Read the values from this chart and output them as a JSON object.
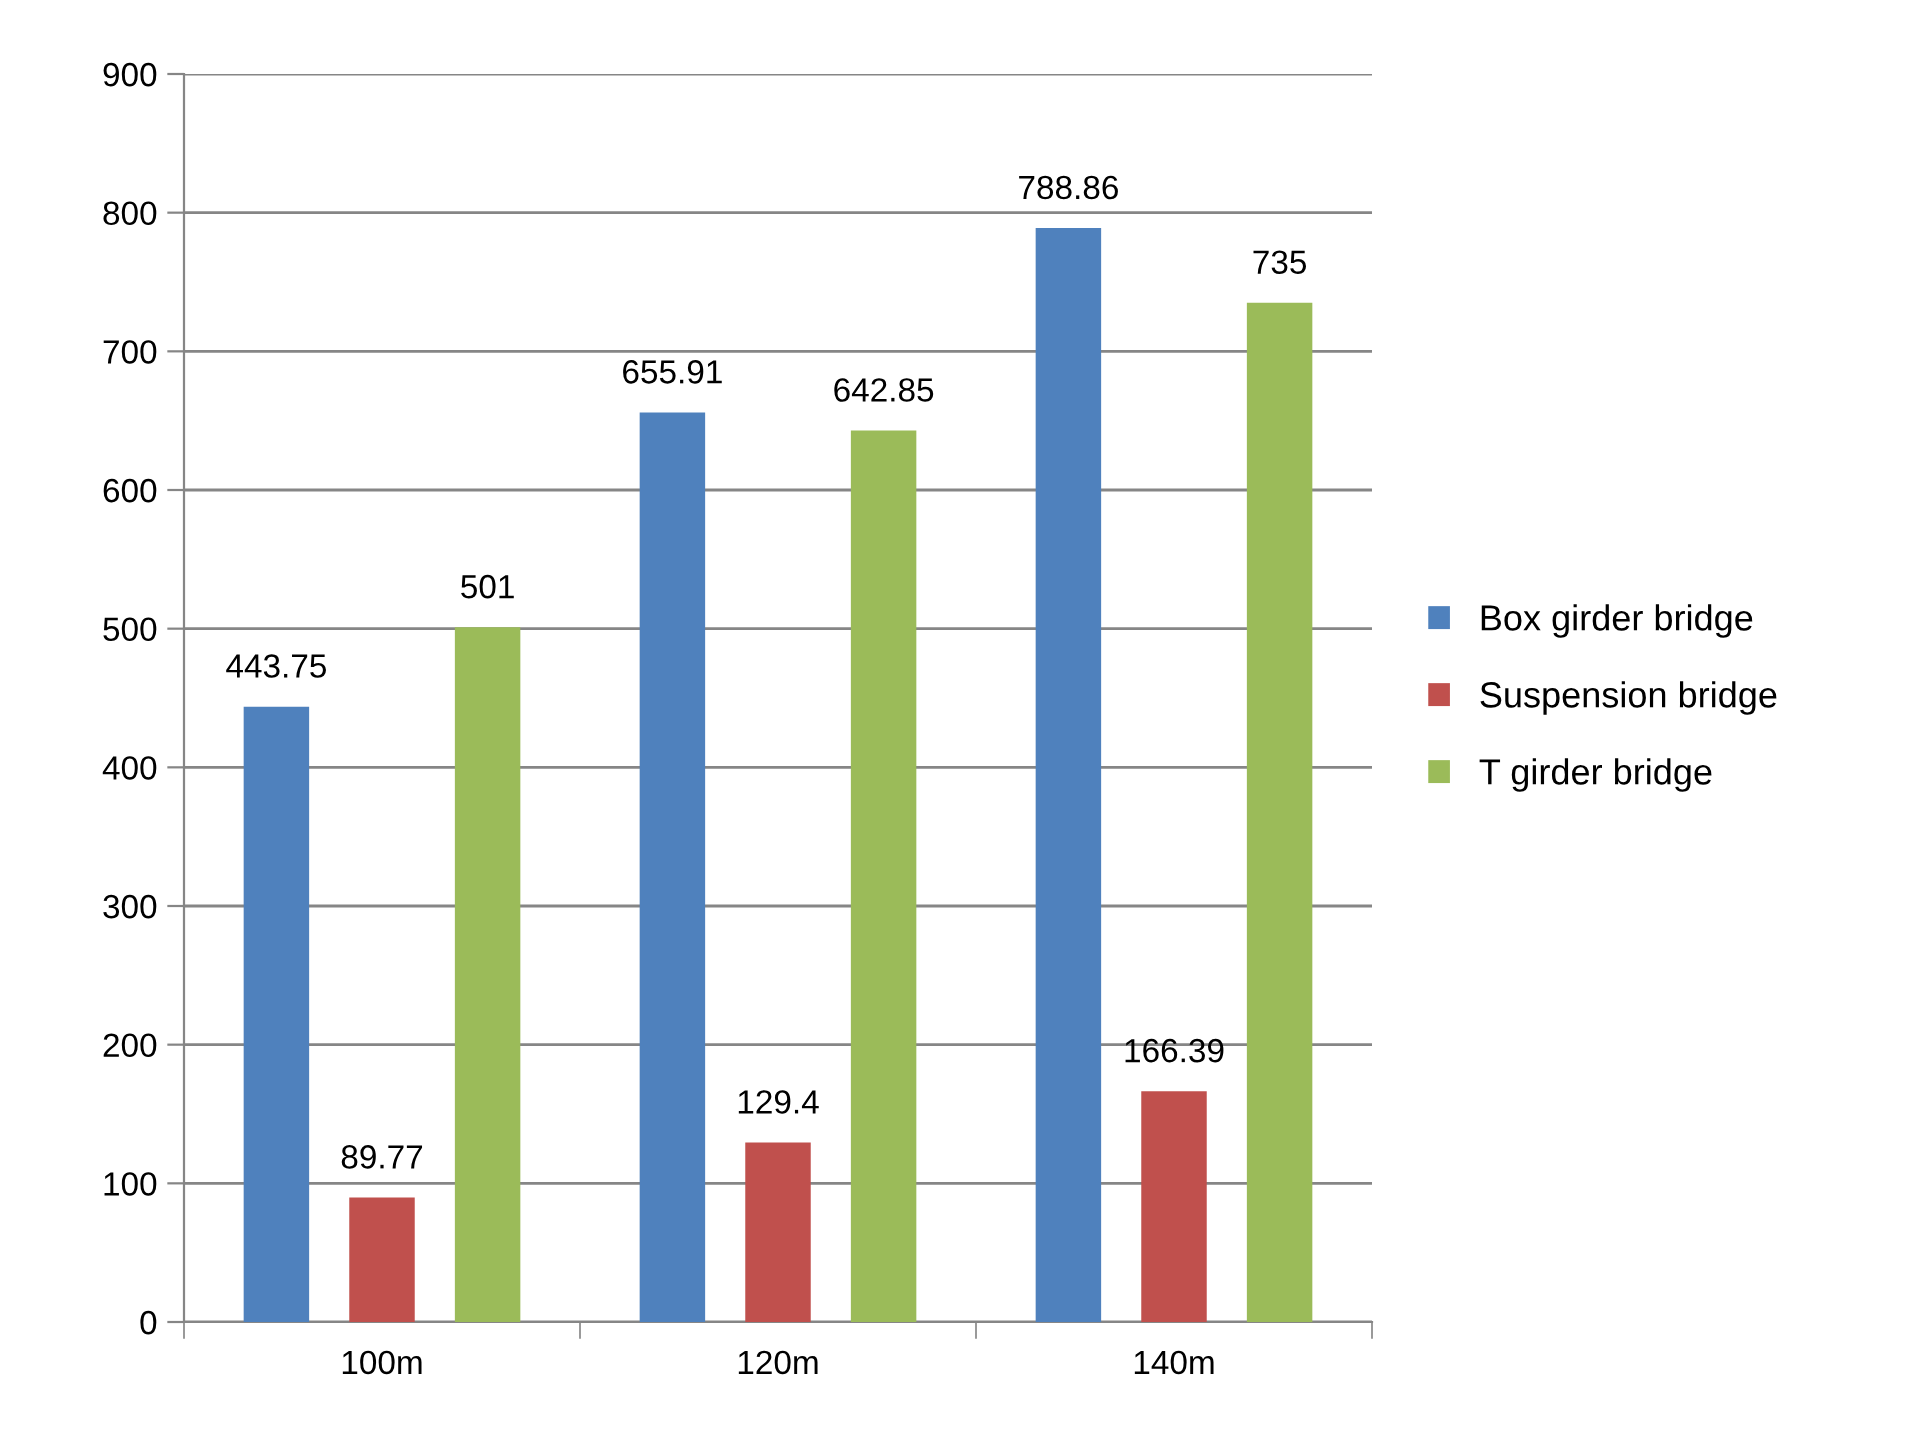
{
  "chart_data": {
    "type": "bar",
    "categories": [
      "100m",
      "120m",
      "140m"
    ],
    "series": [
      {
        "name": "Box girder bridge",
        "color": "#4f81bd",
        "values": [
          443.75,
          655.91,
          788.86
        ]
      },
      {
        "name": "Suspension bridge",
        "color": "#c0504d",
        "values": [
          89.77,
          129.4,
          166.39
        ]
      },
      {
        "name": "T girder bridge",
        "color": "#9bbb59",
        "values": [
          501,
          642.85,
          735
        ]
      }
    ],
    "ylim": [
      0,
      900
    ],
    "yticks": [
      0,
      100,
      200,
      300,
      400,
      500,
      600,
      700,
      800,
      900
    ],
    "grid": "y",
    "legend": "right",
    "data_labels": true
  }
}
